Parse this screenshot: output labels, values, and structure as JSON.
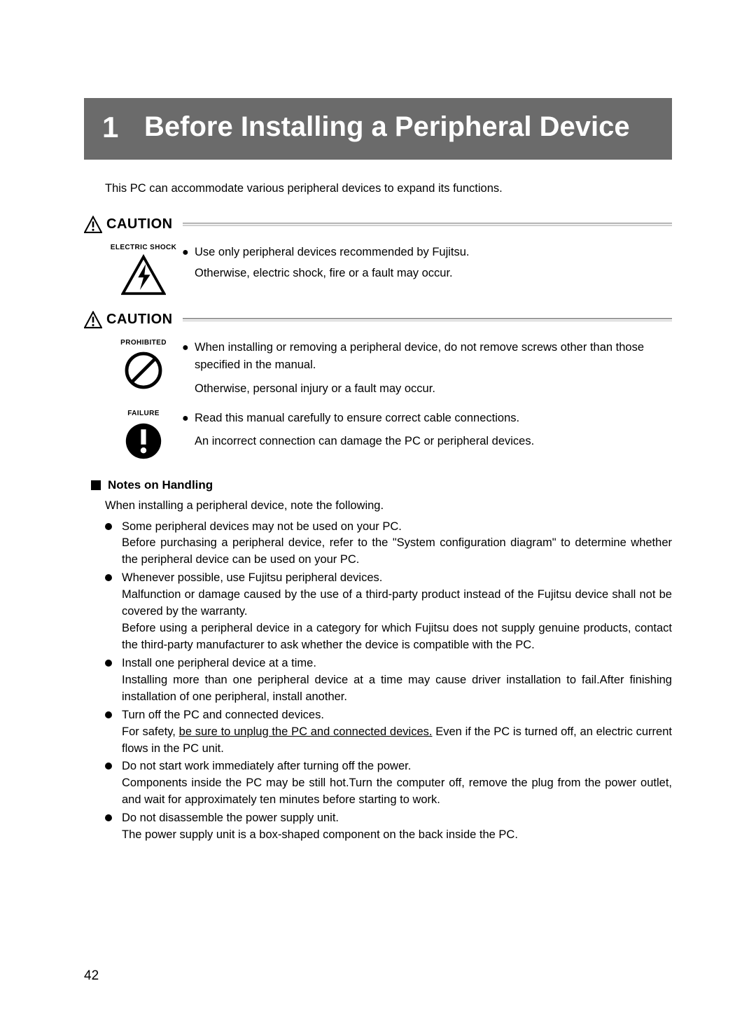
{
  "title": {
    "number": "1",
    "text": "Before Installing a Peripheral Device"
  },
  "intro": "This PC can accommodate various peripheral devices to expand its functions.",
  "caution_label": "CAUTION",
  "caution1": {
    "items": [
      {
        "icon_label": "ELECTRIC SHOCK",
        "icon": "shock",
        "bullet": "Use only peripheral devices recommended by Fujitsu.",
        "followup": "Otherwise, electric shock, fire or a fault may occur."
      }
    ]
  },
  "caution2": {
    "items": [
      {
        "icon_label": "PROHIBITED",
        "icon": "prohibit",
        "bullet": "When installing or removing a peripheral device, do not remove screws other than those specified in the manual.",
        "followup": "Otherwise, personal injury or a fault may occur."
      },
      {
        "icon_label": "FAILURE",
        "icon": "failure",
        "bullet": "Read this manual carefully to ensure correct cable connections.",
        "followup": "An incorrect connection can damage the PC or peripheral devices."
      }
    ]
  },
  "notes": {
    "header": "Notes on Handling",
    "intro": "When installing a peripheral device, note the following.",
    "items": [
      {
        "first": "Some peripheral devices may not be used on your PC.",
        "rest": "Before purchasing a peripheral device, refer to the \"System configuration diagram\" to determine whether the peripheral device can be used on your PC."
      },
      {
        "first": "Whenever possible, use Fujitsu peripheral devices.",
        "rest": "Malfunction or damage caused by the use of a third-party product instead of the Fujitsu device shall not be covered by the warranty.\nBefore using a peripheral device in a category for which Fujitsu does not supply genuine products, contact the third-party manufacturer to ask whether the device is compatible with the PC."
      },
      {
        "first": "Install one peripheral device at a time.",
        "rest": "Installing more than one peripheral device at a time may cause driver installation to fail.After finishing installation of one peripheral, install another."
      },
      {
        "first": "Turn off the PC and connected devices.",
        "rest_html": "For safety, <span class=\"underline\">be sure to unplug the PC and connected devices.</span> Even if the PC is turned off, an electric current flows in the PC unit."
      },
      {
        "first": "Do not start work immediately after turning off the power.",
        "rest": "Components inside the PC may be still hot.Turn the computer off, remove the plug from the power outlet, and wait for approximately ten minutes before starting to work."
      },
      {
        "first": "Do not disassemble the power supply unit.",
        "rest": "The power supply unit is a box-shaped component on the back inside the PC."
      }
    ]
  },
  "page_number": "42",
  "colors": {
    "title_bg": "#6b6b6b",
    "rule_top": "#9a9a9a",
    "rule_bottom": "#cfcfcf",
    "text": "#000000"
  }
}
